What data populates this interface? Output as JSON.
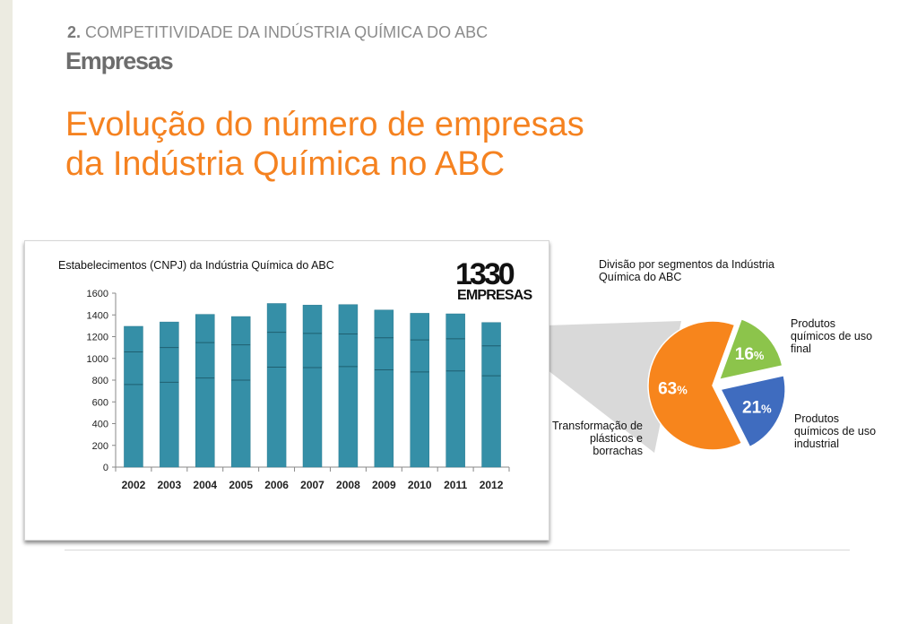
{
  "header": {
    "section_number": "2.",
    "section_title": "COMPETITIVIDADE DA INDÚSTRIA QUÍMICA DO ABC",
    "subtitle": "Empresas",
    "title_line1": "Evolução do número de empresas",
    "title_line2": "da Indústria Química no ABC"
  },
  "highlight": {
    "value": "1330",
    "label": "EMPRESAS"
  },
  "colors": {
    "bar": "#358fa7",
    "title": "#f58220",
    "pie_orange": "#f7851c",
    "pie_green": "#8cc44b",
    "pie_blue": "#3f6cbf"
  },
  "chart_data": [
    {
      "type": "bar",
      "title": "Estabelecimentos (CNPJ) da Indústria Química do ABC",
      "categories": [
        "2002",
        "2003",
        "2004",
        "2005",
        "2006",
        "2007",
        "2008",
        "2009",
        "2010",
        "2011",
        "2012"
      ],
      "values": [
        1295,
        1335,
        1405,
        1385,
        1505,
        1490,
        1495,
        1445,
        1415,
        1410,
        1330
      ],
      "segment_lines": [
        [
          760,
          1060
        ],
        [
          780,
          1100
        ],
        [
          820,
          1145
        ],
        [
          800,
          1125
        ],
        [
          920,
          1240
        ],
        [
          915,
          1230
        ],
        [
          925,
          1225
        ],
        [
          895,
          1190
        ],
        [
          875,
          1170
        ],
        [
          885,
          1180
        ],
        [
          840,
          1115
        ]
      ],
      "ylim": [
        0,
        1600
      ],
      "yticks": [
        0,
        200,
        400,
        600,
        800,
        1000,
        1200,
        1400,
        1600
      ],
      "xlabel": "",
      "ylabel": "",
      "grid": false,
      "legend": "none"
    },
    {
      "type": "pie",
      "title": "Divisão por segmentos da Indústria Química do ABC",
      "slices": [
        {
          "label": "Transformação de plásticos e borrachas",
          "value": 63,
          "display": "63",
          "color": "#f7851c"
        },
        {
          "label": "Produtos químicos de uso final",
          "value": 16,
          "display": "16",
          "color": "#8cc44b"
        },
        {
          "label": "Produtos químicos de uso industrial",
          "value": 21,
          "display": "21",
          "color": "#3f6cbf"
        }
      ],
      "percent_sign": "%",
      "legend": "none"
    }
  ]
}
